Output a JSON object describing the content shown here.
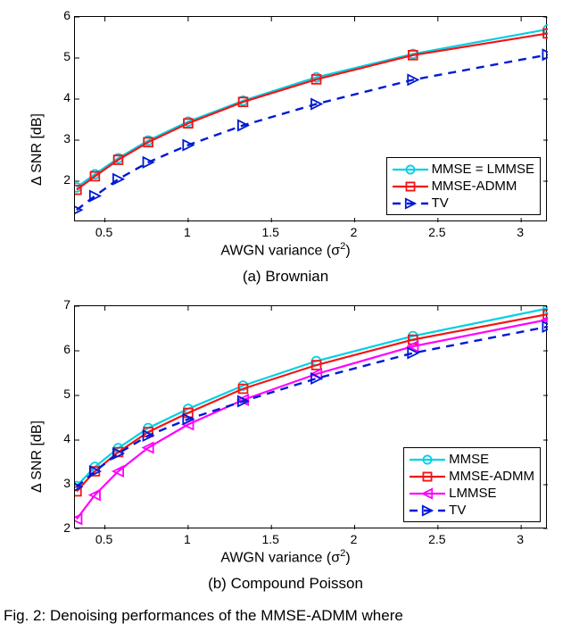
{
  "palette": {
    "cyan": "#00d0e6",
    "red": "#f31515",
    "magenta": "#ff00ff",
    "blue": "#0019d6",
    "black": "#000000",
    "white": "#ffffff"
  },
  "panelA": {
    "subtitle": "(a) Brownian",
    "xlabel_prefix": "AWGN variance (σ",
    "xlabel_suffix": ")",
    "xlabel_sup": "2",
    "ylabel": "Δ SNR [dB]",
    "xlim": [
      0.32,
      3.16
    ],
    "ylim": [
      1.0,
      6.0
    ],
    "xticks": [
      0.5,
      1,
      1.5,
      2,
      2.5,
      3
    ],
    "xtick_labels": [
      "0.5",
      "1",
      "1.5",
      "2",
      "2.5",
      "3"
    ],
    "yticks": [
      2,
      3,
      4,
      5,
      6
    ],
    "ytick_labels": [
      "2",
      "3",
      "4",
      "5",
      "6"
    ],
    "series": [
      {
        "name": "MMSE = LMMSE",
        "color": "#00d0e6",
        "dash": null,
        "width": 2.2,
        "marker": "circle",
        "marker_size": 7,
        "x": [
          0.33,
          0.44,
          0.58,
          0.76,
          1.0,
          1.33,
          1.77,
          2.35,
          3.16
        ],
        "y": [
          1.85,
          2.17,
          2.56,
          2.99,
          3.45,
          3.96,
          4.53,
          5.1,
          5.7
        ]
      },
      {
        "name": "MMSE-ADMM",
        "color": "#f31515",
        "dash": null,
        "width": 2.2,
        "marker": "square",
        "marker_size": 7,
        "x": [
          0.33,
          0.44,
          0.58,
          0.76,
          1.0,
          1.33,
          1.77,
          2.35,
          3.16
        ],
        "y": [
          1.79,
          2.12,
          2.52,
          2.95,
          3.41,
          3.93,
          4.48,
          5.07,
          5.6
        ]
      },
      {
        "name": "TV",
        "color": "#0019d6",
        "dash": "9,7",
        "width": 2.4,
        "marker": "triangle-right",
        "marker_size": 8,
        "x": [
          0.33,
          0.44,
          0.58,
          0.76,
          1.0,
          1.33,
          1.77,
          2.35,
          3.16
        ],
        "y": [
          1.3,
          1.64,
          2.05,
          2.46,
          2.88,
          3.36,
          3.88,
          4.47,
          5.08
        ]
      }
    ],
    "legend": {
      "pos": "bottom-right",
      "items": [
        {
          "label": "MMSE = LMMSE",
          "series": 0
        },
        {
          "label": "MMSE-ADMM",
          "series": 1
        },
        {
          "label": "TV",
          "series": 2
        }
      ]
    }
  },
  "panelB": {
    "subtitle": "(b) Compound Poisson",
    "xlabel_prefix": "AWGN variance (σ",
    "xlabel_suffix": ")",
    "xlabel_sup": "2",
    "ylabel": "Δ SNR [dB]",
    "xlim": [
      0.32,
      3.16
    ],
    "ylim": [
      2.0,
      7.0
    ],
    "xticks": [
      0.5,
      1,
      1.5,
      2,
      2.5,
      3
    ],
    "xtick_labels": [
      "0.5",
      "1",
      "1.5",
      "2",
      "2.5",
      "3"
    ],
    "yticks": [
      2,
      3,
      4,
      5,
      6,
      7
    ],
    "ytick_labels": [
      "2",
      "3",
      "4",
      "5",
      "6",
      "7"
    ],
    "series": [
      {
        "name": "MMSE",
        "color": "#00d0e6",
        "dash": null,
        "width": 2.2,
        "marker": "circle",
        "marker_size": 7,
        "x": [
          0.33,
          0.44,
          0.58,
          0.76,
          1.0,
          1.33,
          1.77,
          2.35,
          3.16
        ],
        "y": [
          2.97,
          3.4,
          3.82,
          4.27,
          4.7,
          5.22,
          5.77,
          6.33,
          6.95
        ]
      },
      {
        "name": "MMSE-ADMM",
        "color": "#f31515",
        "dash": null,
        "width": 2.2,
        "marker": "square",
        "marker_size": 7,
        "x": [
          0.33,
          0.44,
          0.58,
          0.76,
          1.0,
          1.33,
          1.77,
          2.35,
          3.16
        ],
        "y": [
          2.85,
          3.3,
          3.73,
          4.18,
          4.61,
          5.15,
          5.68,
          6.25,
          6.82
        ]
      },
      {
        "name": "LMMSE",
        "color": "#ff00ff",
        "dash": null,
        "width": 2.2,
        "marker": "triangle-left",
        "marker_size": 8,
        "x": [
          0.33,
          0.44,
          0.58,
          0.76,
          1.0,
          1.33,
          1.77,
          2.35,
          3.16
        ],
        "y": [
          2.23,
          2.77,
          3.3,
          3.83,
          4.35,
          4.9,
          5.48,
          6.1,
          6.7
        ]
      },
      {
        "name": "TV",
        "color": "#0019d6",
        "dash": "9,7",
        "width": 2.4,
        "marker": "triangle-right",
        "marker_size": 8,
        "x": [
          0.33,
          0.44,
          0.58,
          0.76,
          1.0,
          1.33,
          1.77,
          2.35,
          3.16
        ],
        "y": [
          2.95,
          3.3,
          3.7,
          4.1,
          4.47,
          4.87,
          5.38,
          5.95,
          6.54
        ]
      }
    ],
    "legend": {
      "pos": "bottom-right",
      "items": [
        {
          "label": "MMSE",
          "series": 0
        },
        {
          "label": "MMSE-ADMM",
          "series": 1
        },
        {
          "label": "LMMSE",
          "series": 2
        },
        {
          "label": "TV",
          "series": 3
        }
      ]
    }
  },
  "caption": "Fig. 2: Denoising performances of the MMSE-ADMM where"
}
